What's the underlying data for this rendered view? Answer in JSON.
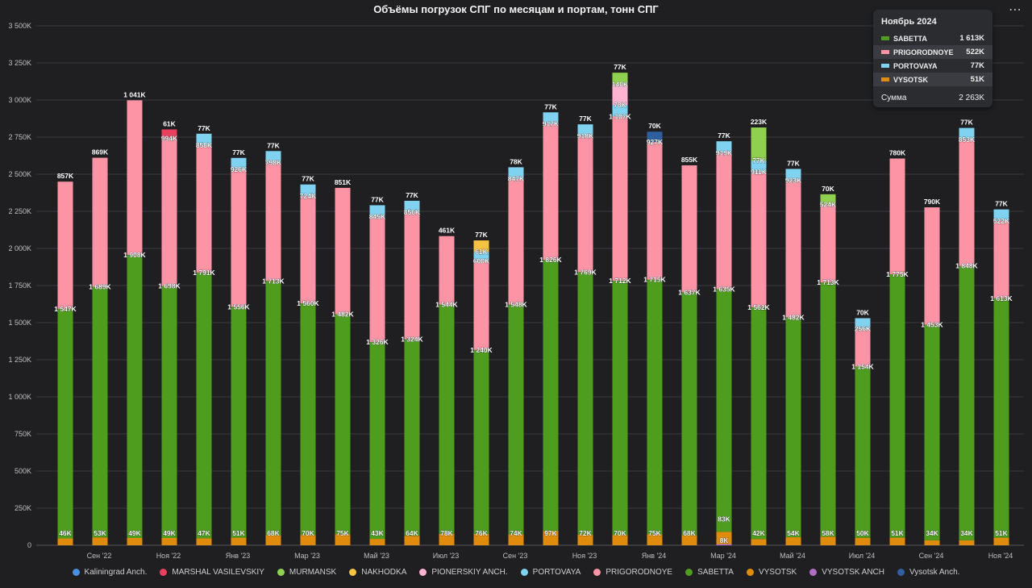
{
  "header": {
    "title": "Объёмы погрузок СПГ по месяцам и портам, тонн СПГ",
    "menu_icon": "more-dots-icon"
  },
  "colors": {
    "Kaliningrad Anch.": "#4a90e2",
    "MARSHAL VASILEVSKIY": "#e8415d",
    "MURMANSK": "#8fd14f",
    "NAKHODKA": "#f5c242",
    "PIONERSKIY ANCH.": "#ffb3d0",
    "PORTOVAYA": "#7fd3f0",
    "PRIGORODNOYE": "#fd94a5",
    "SABETTA": "#4e9d1f",
    "VYSOTSK": "#df8c0e",
    "VYSOTSK ANCH": "#b06fc4",
    "Vysotsk Anch.": "#2e5f9e"
  },
  "tooltip": {
    "title": "Ноябрь 2024",
    "rows": [
      {
        "name": "SABETTA",
        "value": "1 613K",
        "color": "#4e9d1f"
      },
      {
        "name": "PRIGORODNOYE",
        "value": "522K",
        "color": "#fd94a5"
      },
      {
        "name": "PORTOVAYA",
        "value": "77K",
        "color": "#7fd3f0"
      },
      {
        "name": "VYSOTSK",
        "value": "51K",
        "color": "#df8c0e"
      }
    ],
    "sum_label": "Сумма",
    "sum_value": "2 263K"
  },
  "legend": [
    "Kaliningrad Anch.",
    "MARSHAL VASILEVSKIY",
    "MURMANSK",
    "NAKHODKA",
    "PIONERSKIY ANCH.",
    "PORTOVAYA",
    "PRIGORODNOYE",
    "SABETTA",
    "VYSOTSK",
    "VYSOTSK ANCH",
    "Vysotsk Anch."
  ],
  "chart_data": {
    "type": "bar",
    "stacked": true,
    "title": "Объёмы погрузок СПГ по месяцам и портам, тонн СПГ",
    "ylim": [
      0,
      3500000
    ],
    "yticks": [
      "0",
      "250K",
      "500K",
      "750K",
      "1 000K",
      "1 250K",
      "1 500K",
      "1 750K",
      "2 000K",
      "2 250K",
      "2 500K",
      "2 750K",
      "3 000K",
      "3 250K",
      "3 500K"
    ],
    "xtick_labels": [
      "Сен '22",
      "Ноя '22",
      "Янв '23",
      "Мар '23",
      "Май '23",
      "Июл '23",
      "Сен '23",
      "Ноя '23",
      "Янв '24",
      "Мар '24",
      "Май '24",
      "Июл '24",
      "Сен '24",
      "Ноя '24"
    ],
    "grid": true,
    "legend_position": "bottom",
    "months": [
      {
        "segments": [
          [
            "VYSOTSK",
            46,
            "46K"
          ],
          [
            "SABETTA",
            1547,
            "1 547K"
          ],
          [
            "PRIGORODNOYE",
            857,
            "857K"
          ]
        ]
      },
      {
        "segments": [
          [
            "VYSOTSK",
            53,
            "53K"
          ],
          [
            "SABETTA",
            1689,
            "1 689K"
          ],
          [
            "PRIGORODNOYE",
            869,
            "869K"
          ]
        ]
      },
      {
        "segments": [
          [
            "VYSOTSK",
            49,
            "49K"
          ],
          [
            "SABETTA",
            1908,
            "1 908K"
          ],
          [
            "PRIGORODNOYE",
            1041,
            "1 041K"
          ]
        ]
      },
      {
        "segments": [
          [
            "VYSOTSK",
            49,
            "49K"
          ],
          [
            "SABETTA",
            1698,
            "1 698K"
          ],
          [
            "PRIGORODNOYE",
            994,
            "994K"
          ],
          [
            "MARSHAL VASILEVSKIY",
            61,
            "61K"
          ]
        ]
      },
      {
        "segments": [
          [
            "VYSOTSK",
            47,
            "47K"
          ],
          [
            "SABETTA",
            1791,
            "1 791K"
          ],
          [
            "PRIGORODNOYE",
            858,
            "858K"
          ],
          [
            "PORTOVAYA",
            77,
            "77K"
          ]
        ]
      },
      {
        "segments": [
          [
            "VYSOTSK",
            51,
            "51K"
          ],
          [
            "SABETTA",
            1556,
            "1 556K"
          ],
          [
            "PRIGORODNOYE",
            926,
            "926K"
          ],
          [
            "PORTOVAYA",
            77,
            "77K"
          ]
        ]
      },
      {
        "segments": [
          [
            "VYSOTSK",
            68,
            "68K"
          ],
          [
            "SABETTA",
            1713,
            "1 713K"
          ],
          [
            "PRIGORODNOYE",
            798,
            "798K"
          ],
          [
            "PORTOVAYA",
            77,
            "77K"
          ]
        ]
      },
      {
        "segments": [
          [
            "VYSOTSK",
            70,
            "70K"
          ],
          [
            "SABETTA",
            1560,
            "1 560K"
          ],
          [
            "PRIGORODNOYE",
            724,
            "724K"
          ],
          [
            "PORTOVAYA",
            77,
            "77K"
          ]
        ]
      },
      {
        "segments": [
          [
            "VYSOTSK",
            75,
            "75K"
          ],
          [
            "SABETTA",
            1482,
            "1 482K"
          ],
          [
            "PRIGORODNOYE",
            851,
            "851K"
          ]
        ]
      },
      {
        "segments": [
          [
            "VYSOTSK",
            43,
            "43K"
          ],
          [
            "SABETTA",
            1326,
            "1 326K"
          ],
          [
            "PRIGORODNOYE",
            845,
            "845K"
          ],
          [
            "PORTOVAYA",
            77,
            "77K"
          ]
        ]
      },
      {
        "segments": [
          [
            "VYSOTSK",
            64,
            "64K"
          ],
          [
            "SABETTA",
            1324,
            "1 324K"
          ],
          [
            "PRIGORODNOYE",
            856,
            "856K"
          ],
          [
            "PORTOVAYA",
            77,
            "77K"
          ]
        ]
      },
      {
        "segments": [
          [
            "VYSOTSK",
            78,
            "78K"
          ],
          [
            "SABETTA",
            1544,
            "1 544K"
          ],
          [
            "PRIGORODNOYE",
            461,
            "461K"
          ]
        ]
      },
      {
        "segments": [
          [
            "VYSOTSK",
            76,
            "76K"
          ],
          [
            "SABETTA",
            1240,
            "1 240K"
          ],
          [
            "PRIGORODNOYE",
            600,
            "600K"
          ],
          [
            "PORTOVAYA",
            61,
            "61K"
          ],
          [
            "NAKHODKA",
            77,
            "77K"
          ]
        ]
      },
      {
        "segments": [
          [
            "VYSOTSK",
            74,
            "74K"
          ],
          [
            "SABETTA",
            1548,
            "1 548K"
          ],
          [
            "PRIGORODNOYE",
            847,
            "847K"
          ],
          [
            "PORTOVAYA",
            78,
            "78K"
          ]
        ]
      },
      {
        "segments": [
          [
            "VYSOTSK",
            97,
            "97K"
          ],
          [
            "SABETTA",
            1826,
            "1 826K"
          ],
          [
            "PRIGORODNOYE",
            917,
            "917K"
          ],
          [
            "PORTOVAYA",
            77,
            "77K"
          ]
        ]
      },
      {
        "segments": [
          [
            "VYSOTSK",
            72,
            "72K"
          ],
          [
            "SABETTA",
            1769,
            "1 769K"
          ],
          [
            "PRIGORODNOYE",
            918,
            "918K"
          ],
          [
            "PORTOVAYA",
            77,
            "77K"
          ]
        ]
      },
      {
        "segments": [
          [
            "VYSOTSK",
            70,
            "70K"
          ],
          [
            "SABETTA",
            1712,
            "1 712K"
          ],
          [
            "PRIGORODNOYE",
            1107,
            "1 107K"
          ],
          [
            "PORTOVAYA",
            78,
            "78K"
          ],
          [
            "PIONERSKIY ANCH.",
            140,
            "140K"
          ],
          [
            "MURMANSK",
            77,
            "77K"
          ]
        ]
      },
      {
        "segments": [
          [
            "VYSOTSK",
            75,
            "75K"
          ],
          [
            "SABETTA",
            1715,
            "1 715K"
          ],
          [
            "PRIGORODNOYE",
            927,
            "927K"
          ],
          [
            "Vysotsk Anch.",
            70,
            "70K"
          ]
        ]
      },
      {
        "segments": [
          [
            "VYSOTSK",
            68,
            "68K"
          ],
          [
            "SABETTA",
            1637,
            "1 637K"
          ],
          [
            "PRIGORODNOYE",
            855,
            "855K"
          ]
        ]
      },
      {
        "segments": [
          [
            "VYSOTSK ANCH",
            8,
            "8K"
          ],
          [
            "VYSOTSK",
            83,
            "83K"
          ],
          [
            "SABETTA",
            1635,
            "1 635K"
          ],
          [
            "PRIGORODNOYE",
            919,
            "919K"
          ],
          [
            "PORTOVAYA",
            77,
            "77K"
          ]
        ]
      },
      {
        "segments": [
          [
            "VYSOTSK",
            42,
            "42K"
          ],
          [
            "SABETTA",
            1562,
            "1 562K"
          ],
          [
            "PRIGORODNOYE",
            911,
            "911K"
          ],
          [
            "PORTOVAYA",
            77,
            "77K"
          ],
          [
            "MURMANSK",
            223,
            "223K"
          ]
        ]
      },
      {
        "segments": [
          [
            "VYSOTSK",
            54,
            "54K"
          ],
          [
            "SABETTA",
            1482,
            "1 482K"
          ],
          [
            "PRIGORODNOYE",
            923,
            "923K"
          ],
          [
            "PORTOVAYA",
            77,
            "77K"
          ]
        ]
      },
      {
        "segments": [
          [
            "VYSOTSK",
            58,
            "58K"
          ],
          [
            "SABETTA",
            1713,
            "1 713K"
          ],
          [
            "PRIGORODNOYE",
            524,
            "524K"
          ],
          [
            "MURMANSK",
            70,
            "70K"
          ]
        ]
      },
      {
        "segments": [
          [
            "VYSOTSK",
            50,
            "50K"
          ],
          [
            "SABETTA",
            1154,
            "1 154K"
          ],
          [
            "PRIGORODNOYE",
            256,
            "256K"
          ],
          [
            "PORTOVAYA",
            70,
            "70K"
          ]
        ]
      },
      {
        "segments": [
          [
            "VYSOTSK",
            51,
            "51K"
          ],
          [
            "SABETTA",
            1775,
            "1 775K"
          ],
          [
            "PRIGORODNOYE",
            780,
            "780K"
          ]
        ]
      },
      {
        "segments": [
          [
            "VYSOTSK",
            34,
            "34K"
          ],
          [
            "SABETTA",
            1453,
            "1 453K"
          ],
          [
            "PRIGORODNOYE",
            790,
            "790K"
          ]
        ]
      },
      {
        "segments": [
          [
            "VYSOTSK",
            34,
            "34K"
          ],
          [
            "SABETTA",
            1848,
            "1 848K"
          ],
          [
            "PRIGORODNOYE",
            853,
            "853K"
          ],
          [
            "PORTOVAYA",
            77,
            "77K"
          ]
        ]
      },
      {
        "segments": [
          [
            "VYSOTSK",
            51,
            "51K"
          ],
          [
            "SABETTA",
            1613,
            "1 613K"
          ],
          [
            "PRIGORODNOYE",
            522,
            "522K"
          ],
          [
            "PORTOVAYA",
            77,
            "77K"
          ]
        ]
      }
    ]
  }
}
